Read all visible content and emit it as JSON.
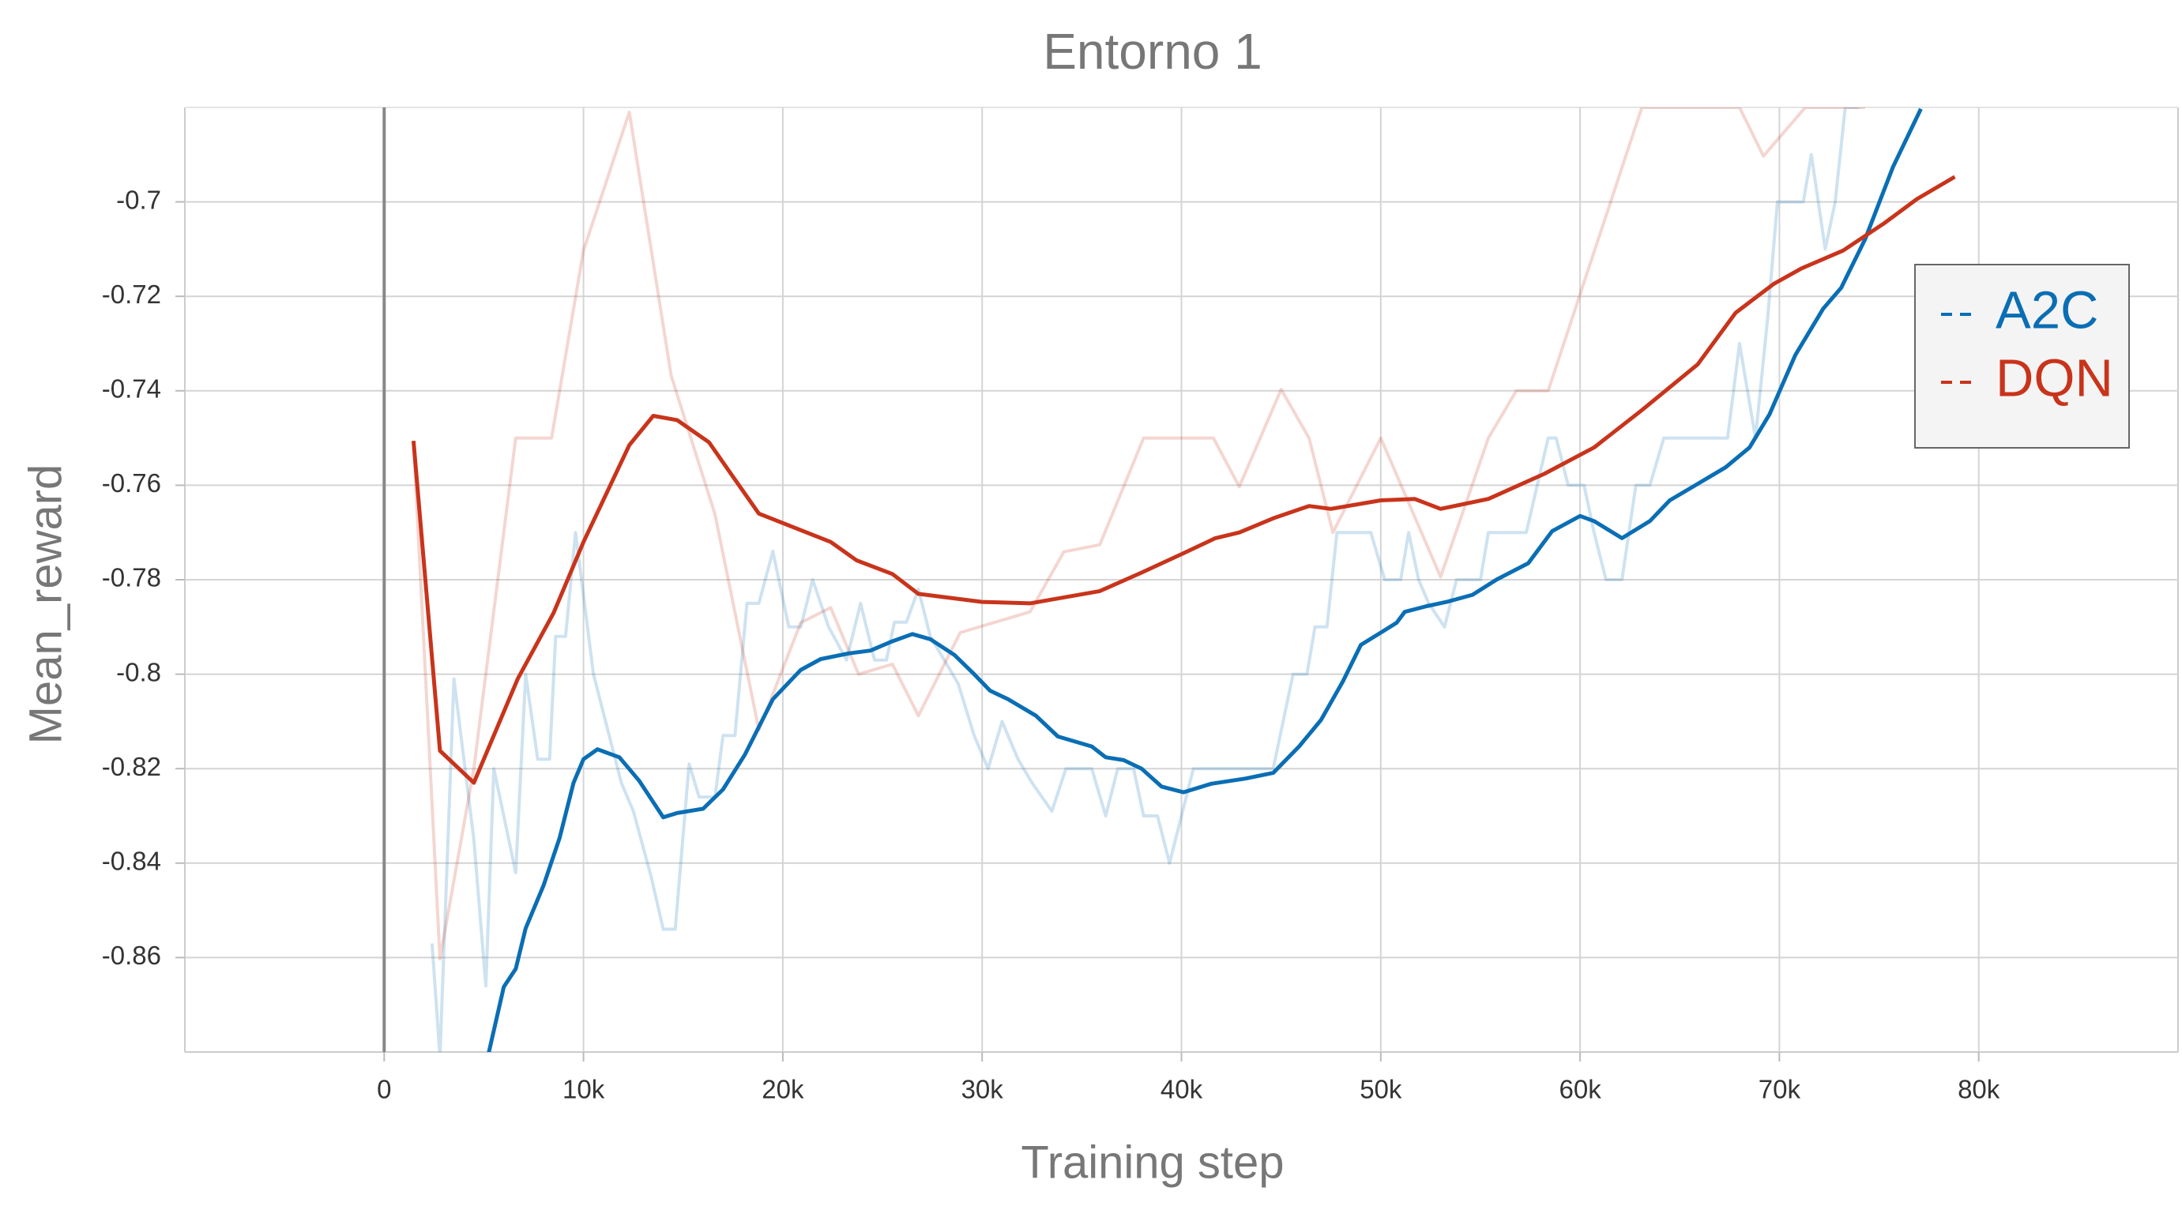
{
  "chart_data": {
    "type": "line",
    "title": "Entorno 1",
    "x_label": "Training step",
    "y_label": "Mean_reward",
    "xlim": [
      -10000,
      90000
    ],
    "ylim": [
      -0.88,
      -0.68
    ],
    "xticks": [
      0,
      {
        "value": 10000,
        "label": "10k"
      },
      {
        "value": 20000,
        "label": "20k"
      },
      {
        "value": 30000,
        "label": "30k"
      },
      {
        "value": 40000,
        "label": "40k"
      },
      {
        "value": 50000,
        "label": "50k"
      },
      {
        "value": 60000,
        "label": "60k"
      },
      {
        "value": 70000,
        "label": "70k"
      },
      {
        "value": 80000,
        "label": "80k"
      }
    ],
    "yticks": [
      -0.86,
      -0.84,
      -0.82,
      -0.8,
      -0.78,
      -0.76,
      -0.74,
      -0.72,
      -0.7
    ],
    "grid": true,
    "legend": "upper right",
    "series": [
      {
        "name": "A2C",
        "color": "#0a6eb4",
        "x": [
          5200,
          6000,
          6600,
          7100,
          8000,
          8800,
          9500,
          10000,
          10700,
          11800,
          12800,
          14000,
          14700,
          16000,
          17000,
          18100,
          19500,
          20900,
          21900,
          23300,
          24400,
          25400,
          26500,
          27400,
          28600,
          29600,
          30400,
          31300,
          32700,
          33800,
          35500,
          36200,
          37100,
          38000,
          39000,
          40100,
          41500,
          43200,
          44600,
          45900,
          47000,
          48100,
          49000,
          50000,
          50800,
          51200,
          52300,
          53300,
          54600,
          55800,
          57400,
          58600,
          60000,
          60700,
          62100,
          63500,
          64500,
          65900,
          67300,
          68500,
          69500,
          70800,
          72200,
          73100,
          74300,
          75700,
          77100
        ],
        "values": [
          -0.881,
          -0.8662,
          -0.8624,
          -0.8538,
          -0.8447,
          -0.8347,
          -0.823,
          -0.818,
          -0.8159,
          -0.8176,
          -0.8226,
          -0.8303,
          -0.8294,
          -0.8285,
          -0.8244,
          -0.817,
          -0.8053,
          -0.7991,
          -0.7968,
          -0.7956,
          -0.795,
          -0.7932,
          -0.7915,
          -0.7926,
          -0.7959,
          -0.8,
          -0.8035,
          -0.8053,
          -0.8088,
          -0.8132,
          -0.8153,
          -0.8176,
          -0.8182,
          -0.82,
          -0.8238,
          -0.825,
          -0.8232,
          -0.8221,
          -0.8209,
          -0.8153,
          -0.8097,
          -0.8015,
          -0.7938,
          -0.7912,
          -0.7891,
          -0.7868,
          -0.7856,
          -0.7847,
          -0.7832,
          -0.78,
          -0.7765,
          -0.7697,
          -0.7665,
          -0.7676,
          -0.7712,
          -0.7676,
          -0.7632,
          -0.7597,
          -0.7562,
          -0.752,
          -0.745,
          -0.7324,
          -0.7226,
          -0.7182,
          -0.7079,
          -0.6926,
          -0.6803
        ]
      },
      {
        "name": "DQN",
        "color": "#c8341b",
        "x": [
          1470,
          2800,
          4500,
          6700,
          8500,
          10000,
          12300,
          13500,
          14700,
          16300,
          17500,
          18800,
          22400,
          23700,
          25500,
          26800,
          30000,
          32400,
          35900,
          38000,
          40100,
          41700,
          42900,
          44600,
          46400,
          47500,
          50000,
          51700,
          53000,
          55400,
          58200,
          60700,
          63100,
          65900,
          67800,
          69700,
          71100,
          73200,
          75300,
          76900,
          78800
        ],
        "values": [
          -0.7506,
          -0.8162,
          -0.823,
          -0.801,
          -0.787,
          -0.772,
          -0.7515,
          -0.7453,
          -0.7462,
          -0.7509,
          -0.7582,
          -0.766,
          -0.772,
          -0.7759,
          -0.7788,
          -0.783,
          -0.7847,
          -0.785,
          -0.7824,
          -0.7785,
          -0.7744,
          -0.7712,
          -0.77,
          -0.767,
          -0.7644,
          -0.765,
          -0.7632,
          -0.7629,
          -0.765,
          -0.7629,
          -0.7576,
          -0.752,
          -0.7441,
          -0.7344,
          -0.7235,
          -0.7174,
          -0.7141,
          -0.7103,
          -0.7044,
          -0.6994,
          -0.6947
        ]
      },
      {
        "color": "#0a6eb4",
        "opacity": 0.2,
        "x": [
          2400,
          2800,
          3500,
          4500,
          5100,
          5500,
          6600,
          7100,
          7700,
          8300,
          8600,
          9100,
          9600,
          10500,
          11900,
          12500,
          13400,
          14000,
          14600,
          15300,
          15800,
          16600,
          17000,
          17600,
          18200,
          18800,
          19500,
          20300,
          20900,
          21500,
          22300,
          23200,
          23900,
          24600,
          25200,
          25600,
          26200,
          26800,
          27400,
          28800,
          29600,
          30300,
          31000,
          31800,
          32500,
          33500,
          34200,
          35500,
          36200,
          36800,
          37600,
          38100,
          38800,
          39400,
          40000,
          40600,
          44600,
          45600,
          46300,
          46700,
          47300,
          47800,
          49500,
          50200,
          51000,
          51400,
          51900,
          52400,
          53200,
          53800,
          55000,
          55400,
          57300,
          58400,
          58800,
          59400,
          60200,
          60700,
          61300,
          62100,
          62800,
          63500,
          64200,
          67400,
          68000,
          68800,
          69400,
          69900,
          71200,
          71600,
          72300,
          72800,
          73300,
          74000
        ],
        "values": [
          -0.857,
          -0.881,
          -0.801,
          -0.835,
          -0.866,
          -0.82,
          -0.842,
          -0.8,
          -0.818,
          -0.818,
          -0.792,
          -0.792,
          -0.77,
          -0.8,
          -0.823,
          -0.829,
          -0.843,
          -0.854,
          -0.854,
          -0.819,
          -0.826,
          -0.826,
          -0.813,
          -0.813,
          -0.785,
          -0.785,
          -0.774,
          -0.79,
          -0.79,
          -0.78,
          -0.79,
          -0.797,
          -0.785,
          -0.797,
          -0.797,
          -0.789,
          -0.789,
          -0.782,
          -0.792,
          -0.802,
          -0.813,
          -0.82,
          -0.81,
          -0.818,
          -0.823,
          -0.829,
          -0.82,
          -0.82,
          -0.83,
          -0.82,
          -0.82,
          -0.83,
          -0.83,
          -0.84,
          -0.83,
          -0.82,
          -0.82,
          -0.8,
          -0.8,
          -0.79,
          -0.79,
          -0.77,
          -0.77,
          -0.78,
          -0.78,
          -0.77,
          -0.78,
          -0.785,
          -0.79,
          -0.78,
          -0.78,
          -0.77,
          -0.77,
          -0.75,
          -0.75,
          -0.76,
          -0.76,
          -0.77,
          -0.78,
          -0.78,
          -0.76,
          -0.76,
          -0.75,
          -0.75,
          -0.73,
          -0.75,
          -0.725,
          -0.7,
          -0.7,
          -0.69,
          -0.71,
          -0.7,
          -0.68,
          -0.68
        ]
      },
      {
        "color": "#c8341b",
        "opacity": 0.2,
        "x": [
          1470,
          2800,
          4500,
          6600,
          8400,
          10000,
          12300,
          14400,
          16600,
          18800,
          20900,
          22400,
          23800,
          25500,
          26800,
          28900,
          32400,
          34100,
          35900,
          38100,
          41600,
          42900,
          45000,
          46400,
          47600,
          50000,
          53000,
          55400,
          56800,
          58400,
          63100,
          68000,
          69200,
          71300,
          74300
        ],
        "values": [
          -0.7506,
          -0.8603,
          -0.82,
          -0.75,
          -0.75,
          -0.7103,
          -0.681,
          -0.7368,
          -0.7662,
          -0.8118,
          -0.7891,
          -0.7859,
          -0.8,
          -0.7979,
          -0.8088,
          -0.7912,
          -0.7868,
          -0.7741,
          -0.7726,
          -0.75,
          -0.75,
          -0.7603,
          -0.7397,
          -0.75,
          -0.77,
          -0.75,
          -0.7794,
          -0.75,
          -0.74,
          -0.74,
          -0.68,
          -0.68,
          -0.6903,
          -0.68,
          -0.68
        ]
      }
    ]
  }
}
